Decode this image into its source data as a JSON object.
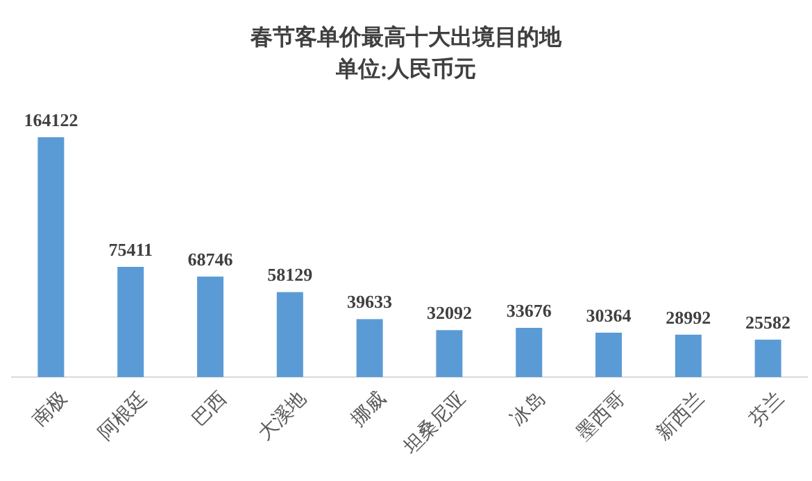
{
  "chart_data": {
    "type": "bar",
    "title": "春节客单价最高十大出境目的地",
    "subtitle": "单位:人民币元",
    "categories": [
      "南极",
      "阿根廷",
      "巴西",
      "大溪地",
      "挪威",
      "坦桑尼亚",
      "冰岛",
      "墨西哥",
      "新西兰",
      "芬兰"
    ],
    "values": [
      164122,
      75411,
      68746,
      58129,
      39633,
      32092,
      33676,
      30364,
      28992,
      25582
    ],
    "color": "#5b9bd5",
    "data_labels": true
  }
}
